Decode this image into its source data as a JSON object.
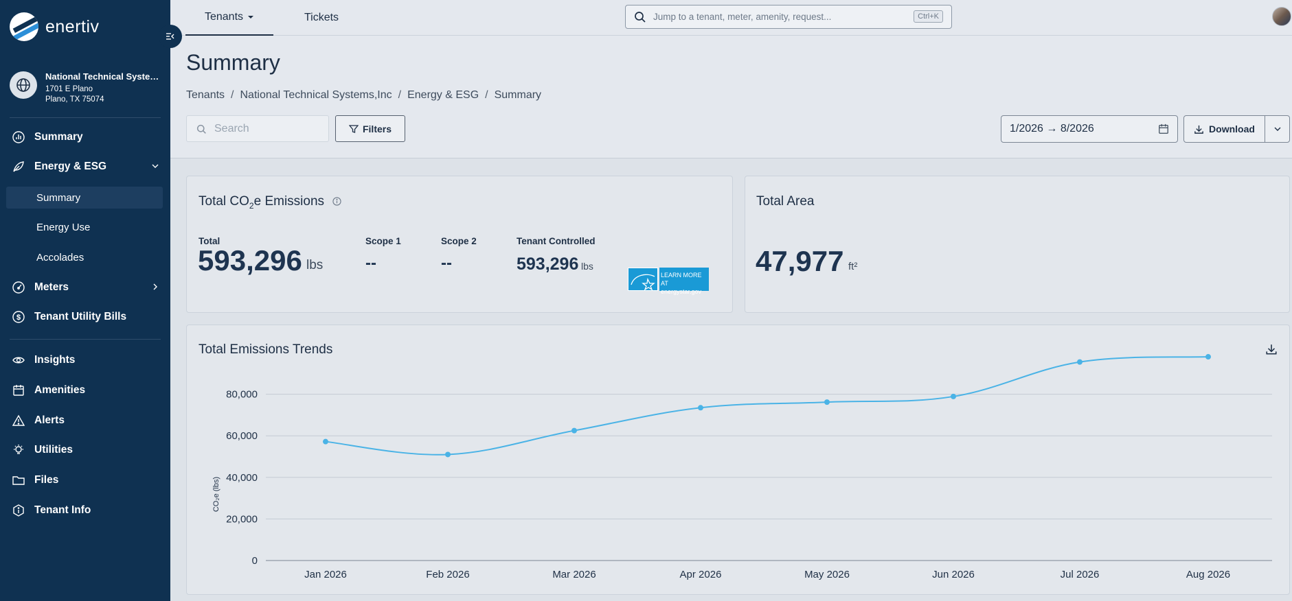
{
  "app": {
    "logo_text": "enertiv"
  },
  "sidebar": {
    "site": {
      "name": "National Technical Systems,Inc",
      "address_line1": "1701 E Plano",
      "address_line2": "Plano, TX 75074"
    },
    "items": [
      {
        "label": "Summary",
        "icon": "chart-circle-icon"
      },
      {
        "label": "Energy & ESG",
        "icon": "leaf-icon"
      },
      {
        "label": "Meters",
        "icon": "gauge-icon"
      },
      {
        "label": "Tenant Utility Bills",
        "icon": "dollar-circle-icon"
      },
      {
        "label": "Insights",
        "icon": "eye-icon"
      },
      {
        "label": "Amenities",
        "icon": "calendar-icon"
      },
      {
        "label": "Alerts",
        "icon": "warning-icon"
      },
      {
        "label": "Utilities",
        "icon": "lightbulb-icon"
      },
      {
        "label": "Files",
        "icon": "folder-icon"
      },
      {
        "label": "Tenant Info",
        "icon": "info-hexagon-icon"
      }
    ],
    "sub_items": [
      {
        "label": "Summary",
        "active": true
      },
      {
        "label": "Energy Use",
        "active": false
      },
      {
        "label": "Accolades",
        "active": false
      }
    ]
  },
  "topbar": {
    "tabs": [
      {
        "label": "Tenants"
      },
      {
        "label": "Tickets"
      }
    ],
    "search_placeholder": "Jump to a tenant, meter, amenity, request...",
    "search_shortcut": "Ctrl+K"
  },
  "page": {
    "title": "Summary",
    "breadcrumb": [
      "Tenants",
      "National Technical Systems,Inc",
      "Energy & ESG",
      "Summary"
    ],
    "search_placeholder": "Search",
    "filters_label": "Filters",
    "date_range": "1/2026 → 8/2026",
    "download_label": "Download"
  },
  "emissions_card": {
    "title_prefix": "Total CO",
    "title_sub": "2",
    "title_suffix": "e Emissions",
    "total_label": "Total",
    "total_value": "593,296",
    "total_unit": "lbs",
    "scope1_label": "Scope 1",
    "scope1_value": "--",
    "scope2_label": "Scope 2",
    "scope2_value": "--",
    "tenant_label": "Tenant Controlled",
    "tenant_value": "593,296",
    "tenant_unit": "lbs",
    "energy_star_line1": "LEARN MORE AT",
    "energy_star_line2": "energystar.gov"
  },
  "area_card": {
    "title": "Total Area",
    "value": "47,977",
    "unit": "ft²"
  },
  "trend_card": {
    "title": "Total Emissions Trends"
  },
  "chart_data": {
    "type": "line",
    "title": "Total Emissions Trends",
    "ylabel": "CO₂e (lbs)",
    "xlabel": "",
    "categories": [
      "Jan 2026",
      "Feb 2026",
      "Mar 2026",
      "Apr 2026",
      "May 2026",
      "Jun 2026",
      "Jul 2026",
      "Aug 2026"
    ],
    "values": [
      57200,
      51000,
      62500,
      73500,
      76200,
      78900,
      95500,
      98000
    ],
    "yticks": [
      0,
      20000,
      40000,
      60000,
      80000
    ],
    "ytick_labels": [
      "0",
      "20,000",
      "40,000",
      "60,000",
      "80,000"
    ],
    "ylim": [
      0,
      100000
    ],
    "grid": true,
    "color": "#4ab3e6"
  }
}
